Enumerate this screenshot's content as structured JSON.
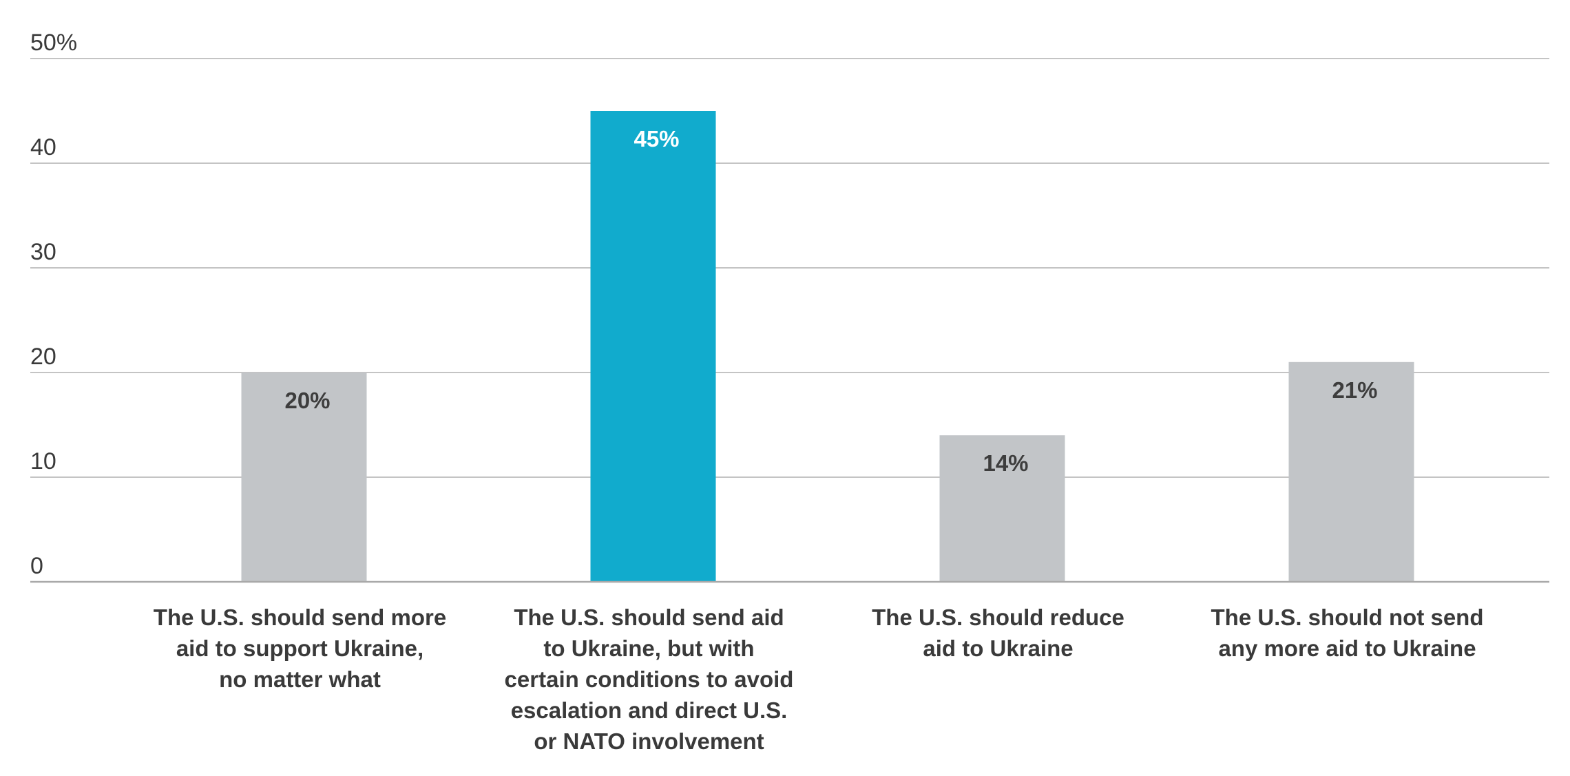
{
  "chart_data": {
    "type": "bar",
    "title": "",
    "xlabel": "",
    "ylabel": "",
    "ylim": [
      0,
      50
    ],
    "yticks": [
      0,
      10,
      20,
      30,
      40,
      50
    ],
    "ytick_labels": [
      "0",
      "10",
      "20",
      "30",
      "40",
      "50%"
    ],
    "grid": true,
    "legend": "none",
    "categories": [
      [
        "The U.S. should send more",
        "aid to support Ukraine,",
        "no matter what"
      ],
      [
        "The U.S. should send aid",
        "to Ukraine, but with",
        "certain conditions to avoid",
        "escalation and direct U.S.",
        "or NATO involvement"
      ],
      [
        "The U.S. should reduce",
        "aid to Ukraine"
      ],
      [
        "The U.S. should not send",
        "any more aid to Ukraine"
      ]
    ],
    "values": [
      20,
      45,
      14,
      21
    ],
    "value_labels": [
      "20%",
      "45%",
      "14%",
      "21%"
    ],
    "colors": {
      "default_bar": "#c2c5c8",
      "highlight_bar": "#11abcd",
      "label_on_default": "#3d3d3d",
      "label_on_highlight": "#ffffff"
    },
    "highlight_index": 1
  }
}
